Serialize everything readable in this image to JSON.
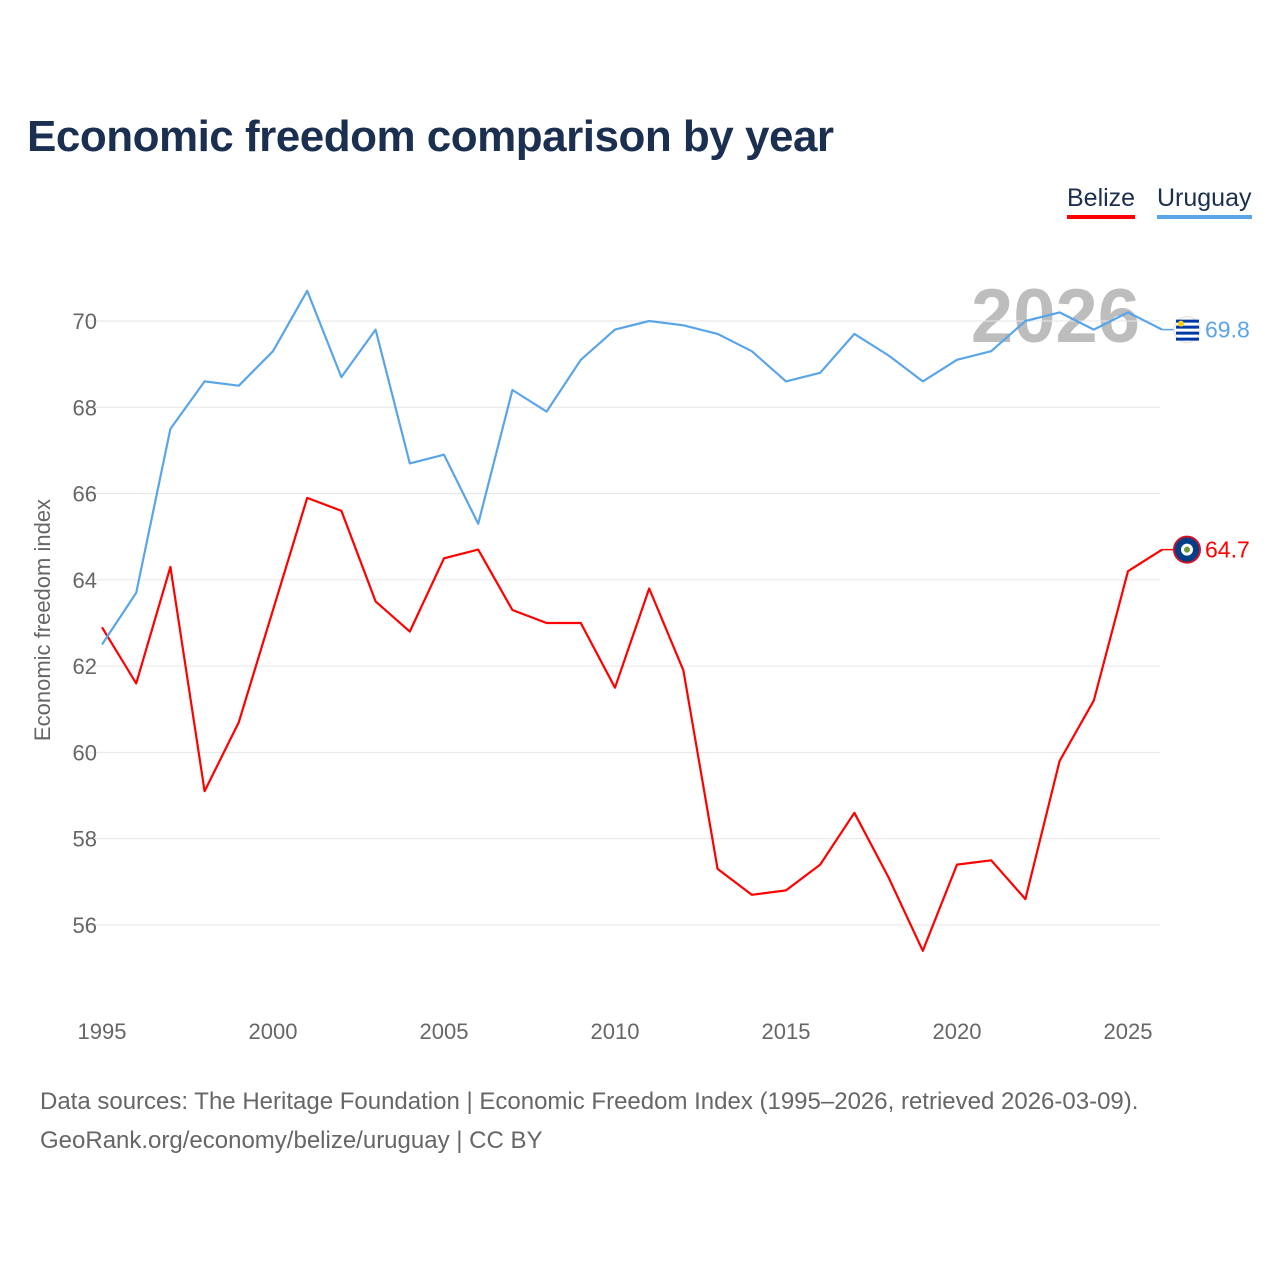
{
  "title": "Economic freedom comparison by year",
  "legend": [
    "Belize",
    "Uruguay"
  ],
  "footer": {
    "line1": "Data sources: The Heritage Foundation | Economic Freedom Index (1995–2026, retrieved 2026-03-09).",
    "line2": "GeoRank.org/economy/belize/uruguay | CC BY"
  },
  "chart_data": {
    "type": "line",
    "title": "Economic freedom comparison by year",
    "xlabel": "",
    "ylabel": "Economic freedom index",
    "watermark_year": "2026",
    "x": [
      1995,
      1996,
      1997,
      1998,
      1999,
      2000,
      2001,
      2002,
      2003,
      2004,
      2005,
      2006,
      2007,
      2008,
      2009,
      2010,
      2011,
      2012,
      2013,
      2014,
      2015,
      2016,
      2017,
      2018,
      2019,
      2020,
      2021,
      2022,
      2023,
      2024,
      2025,
      2026
    ],
    "xticks": [
      "1995",
      "2000",
      "2005",
      "2010",
      "2015",
      "2020",
      "2025"
    ],
    "yticks": [
      "56",
      "58",
      "60",
      "62",
      "64",
      "66",
      "68",
      "70"
    ],
    "ylim": [
      54,
      71.5
    ],
    "grid": true,
    "legend_position": "top-right",
    "series": [
      {
        "name": "Belize",
        "color": "#ff0000",
        "end_label": "64.7",
        "values": [
          62.9,
          61.6,
          64.3,
          59.1,
          60.7,
          63.3,
          65.9,
          65.6,
          63.5,
          62.8,
          64.5,
          64.7,
          63.3,
          63.0,
          63.0,
          61.5,
          63.8,
          61.9,
          57.3,
          56.7,
          56.8,
          57.4,
          58.6,
          57.1,
          55.4,
          57.4,
          57.5,
          56.6,
          59.8,
          61.2,
          64.2,
          64.7
        ]
      },
      {
        "name": "Uruguay",
        "color": "#5aa5e8",
        "end_label": "69.8",
        "values": [
          62.5,
          63.7,
          67.5,
          68.6,
          68.5,
          69.3,
          70.7,
          68.7,
          69.8,
          66.7,
          66.9,
          65.3,
          68.4,
          67.9,
          69.1,
          69.8,
          70.0,
          69.9,
          69.7,
          69.3,
          68.6,
          68.8,
          69.7,
          69.2,
          68.6,
          69.1,
          69.3,
          70.0,
          70.2,
          69.8,
          70.2,
          69.8
        ]
      }
    ]
  }
}
